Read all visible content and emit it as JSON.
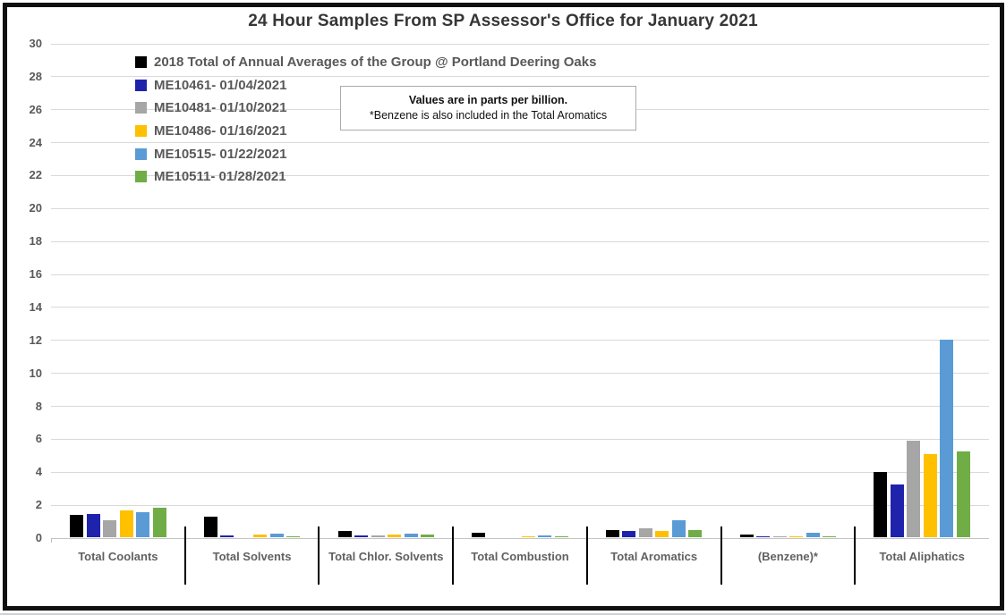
{
  "chart": {
    "title": "24 Hour Samples From SP Assessor's Office for January 2021",
    "note_line1": "Values are in parts per billion.",
    "note_line2": "*Benzene is also included in the Total Aromatics"
  },
  "chart_data": {
    "type": "bar",
    "title": "24 Hour Samples From SP Assessor's Office for January 2021",
    "units": "parts per billion",
    "annotation": "Values are in parts per billion. *Benzene is also included in the Total Aromatics",
    "categories": [
      "Total Coolants",
      "Total Solvents",
      "Total Chlor. Solvents",
      "Total Combustion",
      "Total Aromatics",
      "(Benzene)*",
      "Total Aliphatics"
    ],
    "series": [
      {
        "name": "2018 Total of Annual Averages of the Group @ Portland Deering Oaks",
        "color": "#000000",
        "values": [
          1.4,
          1.3,
          0.45,
          0.3,
          0.5,
          0.2,
          4.0
        ]
      },
      {
        "name": "ME10461- 01/04/2021",
        "color": "#1f23ac",
        "values": [
          1.45,
          0.15,
          0.17,
          0.02,
          0.45,
          0.13,
          3.25
        ]
      },
      {
        "name": "ME10481- 01/10/2021",
        "color": "#a6a6a6",
        "values": [
          1.1,
          0.08,
          0.15,
          0.07,
          0.6,
          0.13,
          5.9
        ]
      },
      {
        "name": "ME10486- 01/16/2021",
        "color": "#ffc000",
        "values": [
          1.7,
          0.2,
          0.2,
          0.1,
          0.45,
          0.12,
          5.1
        ]
      },
      {
        "name": "ME10515- 01/22/2021",
        "color": "#5b9bd5",
        "values": [
          1.6,
          0.25,
          0.28,
          0.17,
          1.1,
          0.32,
          12.05
        ]
      },
      {
        "name": "ME10511- 01/28/2021",
        "color": "#70ad47",
        "values": [
          1.85,
          0.12,
          0.19,
          0.12,
          0.5,
          0.12,
          5.25
        ]
      }
    ],
    "xlabel": "",
    "ylabel": "",
    "ylim": [
      0,
      30
    ],
    "ytick_step": 2,
    "grid": true,
    "legend_position": "top-left-inside"
  },
  "colors": {
    "gridline": "#d9d9d9",
    "axis_text": "#595959",
    "title_text": "#363636",
    "separator": "#000000",
    "note_border": "#ababab",
    "frame_border": "#101010"
  }
}
